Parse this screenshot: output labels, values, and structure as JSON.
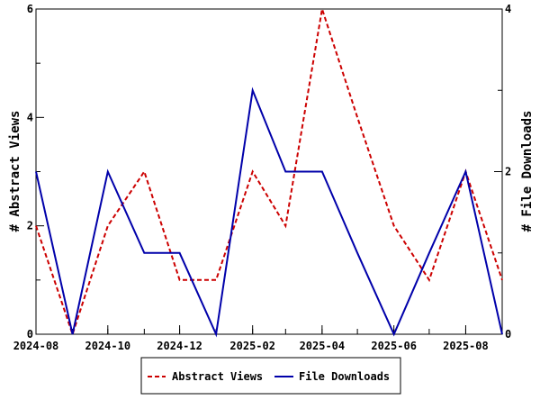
{
  "chart_data": {
    "type": "line",
    "x": [
      "2024-08",
      "2024-09",
      "2024-10",
      "2024-11",
      "2024-12",
      "2025-01",
      "2025-02",
      "2025-03",
      "2025-04",
      "2025-05",
      "2025-06",
      "2025-07",
      "2025-08",
      "2025-09"
    ],
    "x_tick_labels": [
      "2024-08",
      "2024-10",
      "2024-12",
      "2025-02",
      "2025-04",
      "2025-06",
      "2025-08"
    ],
    "ylabel": "# Abstract Views",
    "y2label": "# File Downloads",
    "ylim": [
      0,
      6
    ],
    "y2lim": [
      0,
      4
    ],
    "y_tick_labels": [
      "0",
      "2",
      "4",
      "6"
    ],
    "y2_tick_labels": [
      "0",
      "2",
      "4"
    ],
    "grid": false,
    "legend_placement": "bottom",
    "series": [
      {
        "name": "Abstract Views",
        "axis": "left",
        "color": "#cc0000",
        "style": "dashed",
        "values": [
          2,
          0,
          2,
          3,
          1,
          1,
          3,
          2,
          6,
          4,
          2,
          1,
          3,
          1
        ]
      },
      {
        "name": "File Downloads",
        "axis": "right",
        "color": "#0000aa",
        "style": "solid",
        "values": [
          2,
          0,
          2,
          1,
          1,
          0,
          3,
          2,
          2,
          1,
          0,
          1,
          2,
          0
        ]
      }
    ]
  }
}
